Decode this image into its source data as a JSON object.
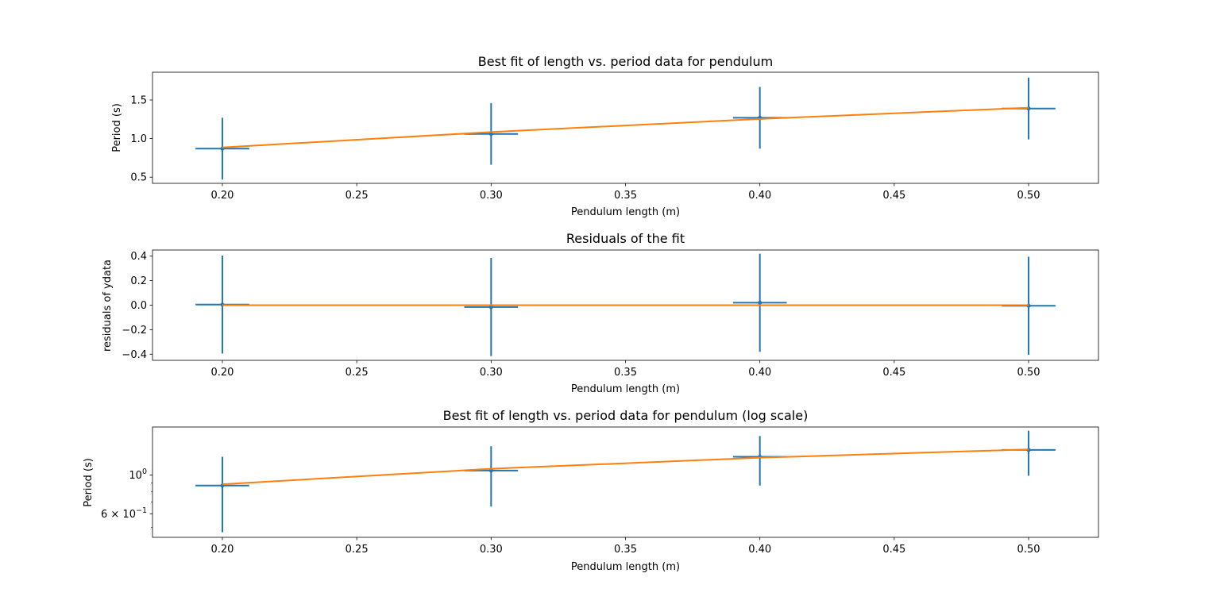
{
  "colors": {
    "data": "#1f77b4",
    "fit": "#ff7f0e",
    "axes": "#000000",
    "background": "#ffffff"
  },
  "chart_data": [
    {
      "type": "line",
      "title": "Best fit of length vs. period data for pendulum",
      "xlabel": "Pendulum length (m)",
      "ylabel": "Period (s)",
      "xlim": [
        0.174,
        0.526
      ],
      "ylim": [
        0.42,
        1.86
      ],
      "yscale": "linear",
      "xticks": [
        "0.20",
        "0.25",
        "0.30",
        "0.35",
        "0.40",
        "0.45",
        "0.50"
      ],
      "xtick_values": [
        0.2,
        0.25,
        0.3,
        0.35,
        0.4,
        0.45,
        0.5
      ],
      "yticks": [
        "0.5",
        "1.0",
        "1.5"
      ],
      "ytick_values": [
        0.5,
        1.0,
        1.5
      ],
      "grid": false,
      "series": [
        {
          "kind": "errorbar",
          "x": [
            0.2,
            0.3,
            0.4,
            0.5
          ],
          "y": [
            0.87,
            1.06,
            1.27,
            1.39
          ],
          "xerr": 0.01,
          "yerr": 0.4
        },
        {
          "kind": "fit",
          "x": [
            0.2,
            0.3,
            0.4,
            0.5
          ],
          "y": [
            0.885,
            1.085,
            1.255,
            1.4
          ]
        }
      ]
    },
    {
      "type": "line",
      "title": "Residuals of the fit",
      "xlabel": "Pendulum length (m)",
      "ylabel": "residuals of ydata",
      "xlim": [
        0.174,
        0.526
      ],
      "ylim": [
        -0.45,
        0.45
      ],
      "yscale": "linear",
      "xticks": [
        "0.20",
        "0.25",
        "0.30",
        "0.35",
        "0.40",
        "0.45",
        "0.50"
      ],
      "xtick_values": [
        0.2,
        0.25,
        0.3,
        0.35,
        0.4,
        0.45,
        0.5
      ],
      "yticks": [
        "0.4",
        "0.2",
        "0.0",
        "−0.2",
        "−0.4"
      ],
      "ytick_values": [
        0.4,
        0.2,
        0.0,
        -0.2,
        -0.4
      ],
      "grid": false,
      "series": [
        {
          "kind": "errorbar",
          "x": [
            0.2,
            0.3,
            0.4,
            0.5
          ],
          "y": [
            0.005,
            -0.015,
            0.02,
            -0.005
          ],
          "xerr": 0.01,
          "yerr": 0.4
        },
        {
          "kind": "fit",
          "x": [
            0.2,
            0.3,
            0.4,
            0.5
          ],
          "y": [
            0.0,
            0.0,
            0.0,
            0.0
          ]
        }
      ]
    },
    {
      "type": "line",
      "title": "Best fit of length vs. period data for pendulum (log scale)",
      "xlabel": "Pendulum length (m)",
      "ylabel": "Period (s)",
      "xlim": [
        0.174,
        0.526
      ],
      "ylim": [
        0.44,
        1.88
      ],
      "yscale": "log",
      "xticks": [
        "0.20",
        "0.25",
        "0.30",
        "0.35",
        "0.40",
        "0.45",
        "0.50"
      ],
      "xtick_values": [
        0.2,
        0.25,
        0.3,
        0.35,
        0.4,
        0.45,
        0.5
      ],
      "yticks": [
        "10^0",
        "6 × 10^−1"
      ],
      "ytick_values": [
        1.0,
        0.6
      ],
      "minor_ytick_values": [
        0.5,
        0.7,
        0.8,
        0.9
      ],
      "grid": false,
      "series": [
        {
          "kind": "errorbar",
          "x": [
            0.2,
            0.3,
            0.4,
            0.5
          ],
          "y": [
            0.87,
            1.06,
            1.27,
            1.39
          ],
          "xerr": 0.01,
          "yerr": 0.4
        },
        {
          "kind": "fit",
          "x": [
            0.2,
            0.3,
            0.4,
            0.5
          ],
          "y": [
            0.885,
            1.085,
            1.255,
            1.4
          ]
        }
      ]
    }
  ]
}
